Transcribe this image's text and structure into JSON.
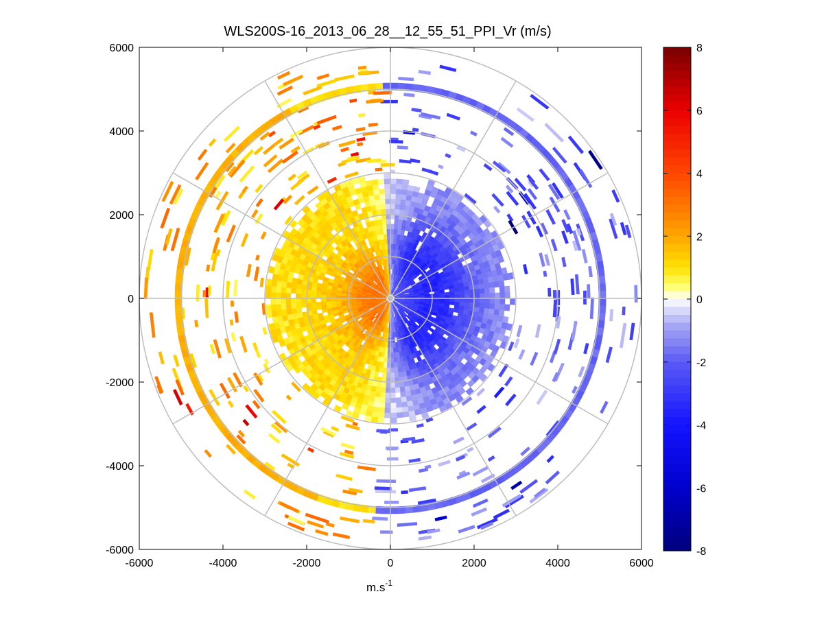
{
  "chart_data": {
    "type": "heatmap",
    "subtype": "polar-ppi",
    "title": "WLS200S-16_2013_06_28__12_55_51_PPI_Vr (m/s)",
    "xlabel_base": "m.s",
    "xlabel_exponent": "-1",
    "ylabel": "",
    "xlim": [
      -6000,
      6000
    ],
    "ylim": [
      -6000,
      6000
    ],
    "xticks": [
      "-6000",
      "-4000",
      "-2000",
      "0",
      "2000",
      "4000",
      "6000"
    ],
    "yticks": [
      "6000",
      "4000",
      "2000",
      "0",
      "-2000",
      "-4000",
      "-6000"
    ],
    "polar_grid_radii": [
      1000,
      2000,
      3000,
      4000,
      5000,
      6000
    ],
    "polar_grid_spokes_deg": [
      0,
      30,
      60,
      90,
      120,
      150,
      180,
      210,
      240,
      270,
      300,
      330
    ],
    "grid": true,
    "colorbar": {
      "min": -8,
      "max": 8,
      "ticks": [
        "8",
        "6",
        "4",
        "2",
        "0",
        "-2",
        "-4",
        "-6",
        "-8"
      ],
      "position": "right"
    },
    "field_description": {
      "sector_positive_deg": [
        180,
        360
      ],
      "sector_negative_deg": [
        0,
        180
      ],
      "max_range_dense": 2950,
      "sparse_rings": [
        [
          3000,
          4800
        ],
        [
          4800,
          5200
        ],
        [
          5200,
          6000
        ]
      ]
    },
    "outer_ring": {
      "radius_inner": 4980,
      "radius_outer": 5150,
      "positive_side_value": 1.8,
      "negative_side_value": -1.8
    }
  }
}
